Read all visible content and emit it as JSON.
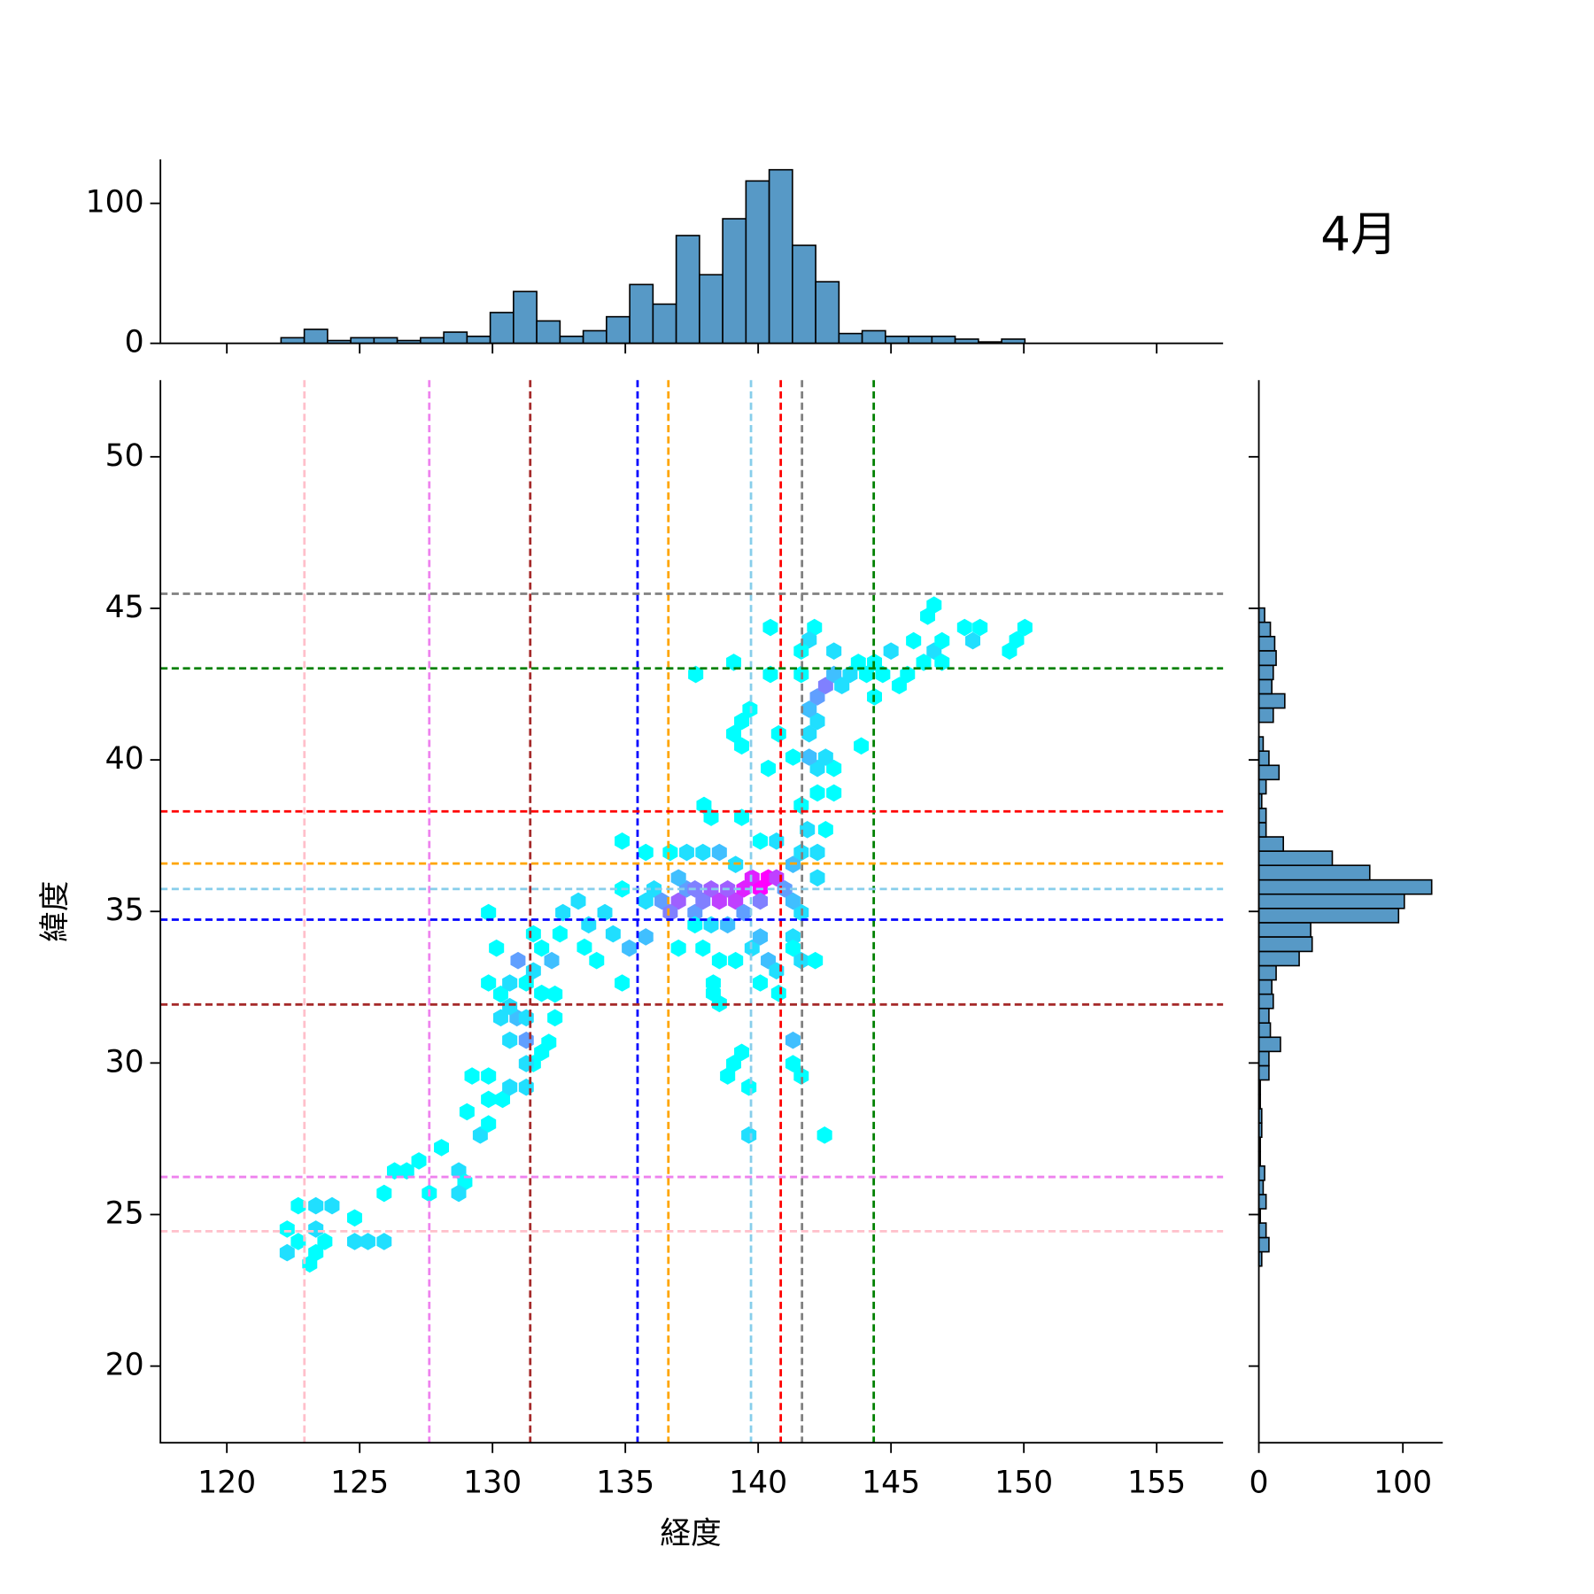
{
  "chart_data": [
    {
      "type": "hexbin",
      "title": "4月",
      "xlabel": "経度",
      "ylabel": "緯度",
      "colormap": "cool",
      "xlim": [
        117.5,
        157.5
      ],
      "ylim": [
        17.47,
        52.53
      ],
      "xticks": [
        120,
        125,
        130,
        135,
        140,
        145,
        150,
        155
      ],
      "yticks": [
        20,
        25,
        30,
        35,
        40,
        45,
        50
      ],
      "hexes": {
        "x": [
          122.27,
          123.12,
          123.35,
          123.69,
          122.69,
          122.27,
          123.35,
          122.69,
          123.35,
          123.96,
          124.81,
          124.81,
          125.31,
          125.92,
          125.92,
          126.31,
          126.77,
          127.23,
          127.62,
          128.08,
          128.73,
          128.96,
          128.73,
          129.04,
          129.54,
          129.85,
          129.23,
          129.85,
          129.85,
          130.38,
          130.65,
          131.27,
          131.54,
          131.85,
          132.12,
          131.27,
          130.65,
          131.27,
          130.31,
          130.92,
          130.65,
          131.27,
          130.31,
          129.85,
          130.65,
          131.27,
          130.96,
          131.54,
          132.23,
          132.35,
          132.35,
          131.85,
          130.15,
          131.54,
          131.85,
          129.85,
          132.54,
          132.65,
          133.23,
          133.46,
          133.62,
          133.92,
          134.23,
          134.54,
          134.88,
          134.88,
          134.88,
          135.15,
          135.77,
          135.77,
          136.08,
          135.77,
          136.38,
          137.0,
          136.69,
          137.31,
          137.0,
          137.62,
          137.62,
          137.92,
          138.23,
          138.54,
          138.85,
          139.15,
          139.46,
          139.77,
          140.08,
          140.38,
          140.69,
          140.08,
          139.46,
          138.85,
          138.23,
          137.62,
          137.0,
          137.92,
          138.54,
          139.15,
          139.77,
          140.08,
          140.38,
          140.69,
          140.08,
          140.77,
          141.31,
          141.62,
          141.31,
          141.0,
          141.31,
          141.62,
          142.23,
          142.23,
          142.54,
          141.85,
          141.62,
          142.15,
          141.31,
          139.15,
          138.54,
          137.92,
          137.31,
          136.69,
          140.08,
          140.69,
          137.96,
          138.23,
          139.38,
          138.31,
          138.54,
          138.31,
          139.38,
          139.08,
          138.85,
          139.65,
          139.65,
          142.5,
          141.31,
          141.31,
          141.62,
          141.62,
          142.23,
          142.85,
          142.23,
          142.85,
          141.92,
          142.54,
          141.31,
          140.38,
          140.77,
          141.92,
          142.23,
          141.92,
          142.23,
          142.54,
          142.85,
          143.15,
          143.46,
          144.08,
          144.38,
          142.85,
          142.12,
          141.92,
          141.62,
          141.62,
          143.77,
          144.69,
          145.31,
          145.0,
          145.85,
          145.62,
          146.23,
          146.62,
          146.92,
          146.92,
          146.38,
          146.62,
          147.77,
          148.08,
          148.35,
          149.46,
          149.73,
          150.04,
          143.88,
          140.46,
          140.46,
          139.08,
          137.65,
          139.69,
          139.38,
          139.08,
          139.38,
          144.38
        ],
        "y": [
          23.74,
          23.37,
          23.74,
          24.11,
          24.11,
          24.52,
          24.52,
          25.29,
          25.29,
          25.29,
          24.11,
          24.89,
          24.11,
          24.11,
          25.7,
          26.44,
          26.44,
          26.77,
          25.7,
          27.21,
          26.44,
          26.07,
          25.7,
          28.39,
          27.62,
          27.99,
          29.57,
          29.57,
          28.8,
          28.8,
          29.2,
          29.2,
          29.98,
          30.35,
          30.68,
          29.98,
          30.75,
          30.75,
          31.49,
          31.49,
          31.86,
          31.49,
          32.27,
          32.64,
          32.64,
          32.64,
          33.38,
          33.04,
          33.38,
          32.27,
          31.49,
          32.3,
          33.79,
          34.26,
          33.79,
          34.96,
          34.26,
          34.96,
          35.34,
          33.82,
          34.56,
          33.38,
          34.96,
          34.26,
          35.74,
          32.64,
          37.32,
          33.79,
          34.16,
          35.34,
          35.74,
          36.95,
          35.34,
          35.34,
          34.96,
          35.74,
          36.11,
          35.74,
          34.96,
          35.34,
          35.74,
          35.34,
          35.74,
          35.34,
          35.74,
          36.11,
          35.74,
          36.11,
          36.11,
          35.34,
          34.96,
          34.56,
          34.56,
          34.56,
          33.79,
          33.79,
          33.38,
          33.38,
          33.79,
          34.16,
          33.38,
          33.04,
          32.64,
          32.3,
          34.16,
          34.96,
          35.34,
          35.74,
          36.55,
          36.95,
          36.95,
          36.11,
          37.7,
          37.7,
          33.38,
          33.38,
          33.79,
          36.55,
          36.95,
          36.95,
          36.95,
          36.95,
          37.32,
          37.32,
          38.5,
          38.1,
          38.1,
          32.3,
          31.96,
          32.64,
          30.35,
          29.98,
          29.57,
          29.2,
          27.62,
          27.62,
          30.75,
          29.98,
          29.57,
          38.5,
          38.91,
          38.91,
          39.72,
          39.72,
          40.09,
          40.09,
          40.09,
          39.72,
          40.86,
          40.86,
          41.27,
          41.67,
          42.08,
          42.45,
          42.82,
          42.45,
          42.82,
          42.82,
          43.22,
          43.59,
          44.37,
          43.96,
          43.59,
          42.82,
          43.22,
          42.82,
          42.45,
          43.59,
          43.93,
          42.82,
          43.22,
          43.59,
          43.22,
          43.93,
          44.74,
          45.11,
          44.37,
          43.93,
          44.37,
          43.59,
          43.96,
          44.37,
          40.46,
          44.37,
          42.82,
          43.22,
          42.82,
          41.67,
          41.27,
          40.86,
          40.46,
          42.08
        ],
        "counts": [
          2,
          1,
          1,
          1,
          1,
          1,
          2,
          1,
          2,
          2,
          2,
          1,
          2,
          2,
          1,
          1,
          1,
          1,
          1,
          1,
          2,
          1,
          2,
          1,
          2,
          1,
          1,
          1,
          1,
          1,
          2,
          2,
          1,
          1,
          1,
          2,
          2,
          4,
          2,
          3,
          2,
          2,
          1,
          1,
          2,
          1,
          4,
          2,
          3,
          1,
          1,
          1,
          1,
          1,
          1,
          1,
          1,
          2,
          2,
          1,
          2,
          1,
          2,
          2,
          1,
          1,
          1,
          3,
          3,
          2,
          2,
          1,
          4,
          6,
          5,
          4,
          3,
          5,
          4,
          5,
          6,
          7,
          6,
          7,
          8,
          8,
          9,
          9,
          7,
          5,
          4,
          3,
          2,
          1,
          1,
          1,
          1,
          1,
          2,
          3,
          3,
          2,
          1,
          1,
          2,
          2,
          3,
          4,
          3,
          2,
          2,
          2,
          1,
          2,
          2,
          1,
          1,
          2,
          3,
          2,
          2,
          1,
          1,
          2,
          1,
          1,
          1,
          1,
          1,
          1,
          1,
          1,
          1,
          1,
          2,
          1,
          3,
          1,
          1,
          1,
          1,
          1,
          2,
          1,
          3,
          2,
          1,
          1,
          1,
          2,
          2,
          3,
          4,
          5,
          3,
          2,
          2,
          1,
          1,
          2,
          1,
          2,
          1,
          1,
          1,
          1,
          1,
          2,
          1,
          1,
          1,
          2,
          1,
          1,
          1,
          1,
          1,
          2,
          1,
          1,
          1,
          1,
          1,
          1,
          1,
          1,
          1,
          1,
          1,
          1,
          1,
          1
        ]
      },
      "vlines": [
        {
          "x": 122.92,
          "color": "pink"
        },
        {
          "x": 127.62,
          "color": "violet"
        },
        {
          "x": 131.42,
          "color": "brown"
        },
        {
          "x": 135.46,
          "color": "blue"
        },
        {
          "x": 136.62,
          "color": "orange"
        },
        {
          "x": 139.73,
          "color": "skyblue"
        },
        {
          "x": 140.85,
          "color": "red"
        },
        {
          "x": 141.65,
          "color": "gray"
        },
        {
          "x": 144.35,
          "color": "green"
        }
      ],
      "hlines": [
        {
          "y": 45.48,
          "color": "gray"
        },
        {
          "y": 43.02,
          "color": "green"
        },
        {
          "y": 38.3,
          "color": "red"
        },
        {
          "y": 36.58,
          "color": "orange"
        },
        {
          "y": 35.74,
          "color": "skyblue"
        },
        {
          "y": 34.73,
          "color": "blue"
        },
        {
          "y": 31.93,
          "color": "brown"
        },
        {
          "y": 26.24,
          "color": "violet"
        },
        {
          "y": 24.45,
          "color": "pink"
        }
      ]
    },
    {
      "type": "histogram",
      "orientation": "vertical",
      "color": "#5799c6",
      "bins": [
        122.04,
        122.915,
        123.79,
        124.665,
        125.54,
        126.415,
        127.29,
        128.165,
        129.04,
        129.915,
        130.79,
        131.665,
        132.54,
        133.415,
        134.29,
        135.165,
        136.04,
        136.915,
        137.79,
        138.665,
        139.54,
        140.415,
        141.29,
        142.165,
        143.04,
        143.915,
        144.79,
        145.665,
        146.54,
        147.415,
        148.29,
        149.165,
        150.04
      ],
      "counts": [
        4,
        10,
        2,
        4,
        4,
        2,
        4,
        8,
        5,
        22,
        37,
        16,
        5,
        9,
        19,
        42,
        28,
        77,
        49,
        89,
        116,
        124,
        70,
        44,
        7,
        9,
        5,
        5,
        5,
        3,
        1,
        3
      ],
      "ylim": [
        0,
        131.4
      ],
      "yticks": [
        0,
        100
      ]
    },
    {
      "type": "histogram",
      "orientation": "horizontal",
      "color": "#5799c6",
      "bins": [
        23.3,
        23.77,
        24.24,
        24.72,
        25.19,
        25.66,
        26.13,
        26.6,
        27.08,
        27.55,
        28.02,
        28.49,
        28.96,
        29.44,
        29.91,
        30.38,
        30.85,
        31.32,
        31.8,
        32.27,
        32.74,
        33.21,
        33.68,
        34.16,
        34.63,
        35.1,
        35.57,
        36.04,
        36.52,
        36.99,
        37.46,
        37.93,
        38.4,
        38.88,
        39.35,
        39.82,
        40.29,
        40.76,
        41.24,
        41.71,
        42.18,
        42.65,
        43.12,
        43.6,
        44.07,
        44.54,
        45.01
      ],
      "counts": [
        2,
        7,
        5,
        1,
        5,
        3,
        4,
        1,
        1,
        2,
        2,
        1,
        1,
        7,
        7,
        15,
        8,
        7,
        10,
        9,
        12,
        28,
        37,
        36,
        97,
        101,
        120,
        77,
        51,
        17,
        5,
        5,
        2,
        5,
        14,
        7,
        3,
        0,
        10,
        18,
        9,
        10,
        12,
        11,
        8,
        4
      ],
      "xlim": [
        0,
        127.7
      ],
      "xticks": [
        0,
        100
      ]
    }
  ]
}
